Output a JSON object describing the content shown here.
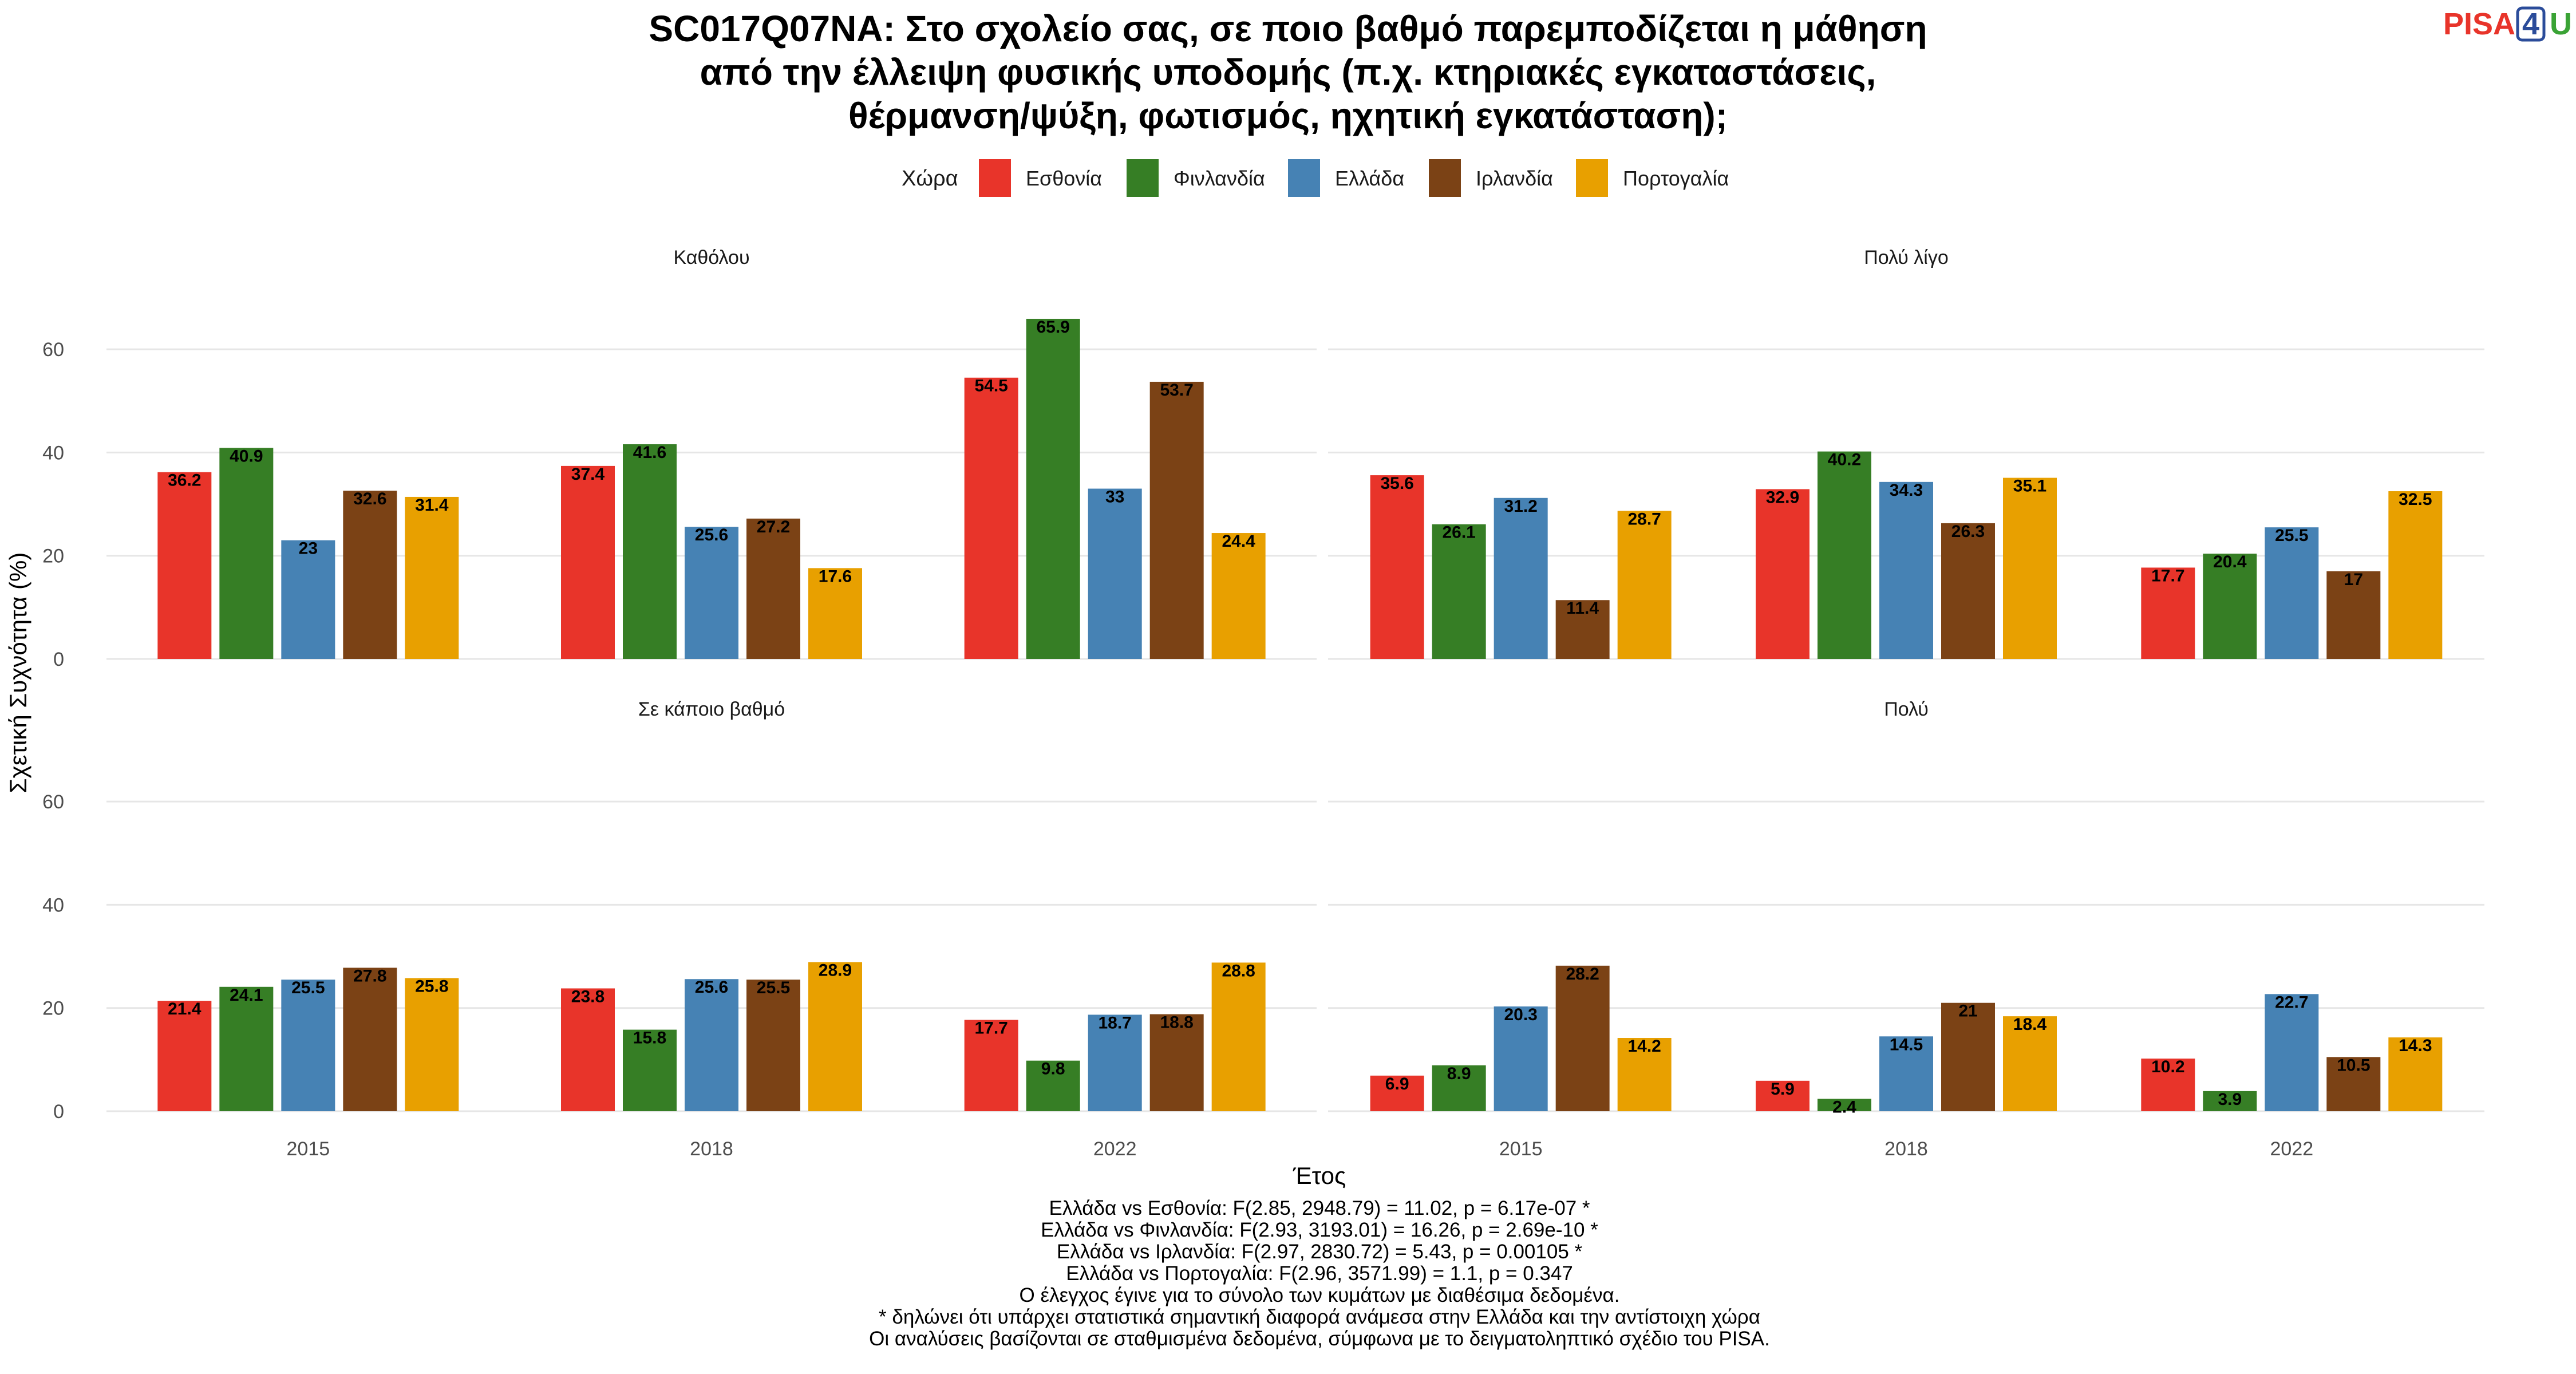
{
  "title_lines": [
    "SC017Q07NA: Στο σχολείο σας, σε ποιο βαθμό παρεμποδίζεται η μάθηση",
    "από την έλλειψη φυσικής υποδομής (π.χ. κτηριακές εγκαταστάσεις,",
    "θέρμανση/ψύξη, φωτισμός, ηχητική εγκατάσταση);"
  ],
  "logo": {
    "part1": "PISA",
    "part2": "4",
    "part3": "U"
  },
  "legend": {
    "title": "Χώρα",
    "items": [
      {
        "label": "Εσθονία",
        "color": "#E8342A"
      },
      {
        "label": "Φινλανδία",
        "color": "#367E25"
      },
      {
        "label": "Ελλάδα",
        "color": "#4682B4"
      },
      {
        "label": "Ιρλανδία",
        "color": "#7B4215"
      },
      {
        "label": "Πορτογαλία",
        "color": "#E8A000"
      }
    ]
  },
  "chart_data": {
    "type": "bar",
    "xlabel": "Έτος",
    "ylabel": "Σχετική Συχνότητα (%)",
    "ylim": [
      0,
      70
    ],
    "yticks": [
      0,
      20,
      40,
      60
    ],
    "categories": [
      "2015",
      "2018",
      "2022"
    ],
    "series_names": [
      "Εσθονία",
      "Φινλανδία",
      "Ελλάδα",
      "Ιρλανδία",
      "Πορτογαλία"
    ],
    "panels": [
      {
        "title": "Καθόλου",
        "values": [
          [
            36.2,
            40.9,
            23,
            32.6,
            31.4
          ],
          [
            37.4,
            41.6,
            25.6,
            27.2,
            17.6
          ],
          [
            54.5,
            65.9,
            33,
            53.7,
            24.4
          ]
        ]
      },
      {
        "title": "Πολύ λίγο",
        "values": [
          [
            35.6,
            26.1,
            31.2,
            11.4,
            28.7
          ],
          [
            32.9,
            40.2,
            34.3,
            26.3,
            35.1
          ],
          [
            17.7,
            20.4,
            25.5,
            17,
            32.5
          ]
        ]
      },
      {
        "title": "Σε κάποιο βαθμό",
        "values": [
          [
            21.4,
            24.1,
            25.5,
            27.8,
            25.8
          ],
          [
            23.8,
            15.8,
            25.6,
            25.5,
            28.9
          ],
          [
            17.7,
            9.8,
            18.7,
            18.8,
            28.8
          ]
        ]
      },
      {
        "title": "Πολύ",
        "values": [
          [
            6.9,
            8.9,
            20.3,
            28.2,
            14.2
          ],
          [
            5.9,
            2.4,
            14.5,
            21,
            18.4
          ],
          [
            10.2,
            3.9,
            22.7,
            10.5,
            14.3
          ]
        ]
      }
    ]
  },
  "notes": [
    "Ελλάδα vs Εσθονία: F(2.85, 2948.79) = 11.02, p = 6.17e-07 *",
    "Ελλάδα vs Φινλανδία: F(2.93, 3193.01) = 16.26, p = 2.69e-10 *",
    "Ελλάδα vs Ιρλανδία: F(2.97, 2830.72) = 5.43, p = 0.00105 *",
    "Ελλάδα vs Πορτογαλία: F(2.96, 3571.99) = 1.1, p = 0.347",
    "Ο έλεγχος έγινε για το σύνολο των κυμάτων με διαθέσιμα δεδομένα.",
    "* δηλώνει ότι υπάρχει στατιστικά σημαντική διαφορά ανάμεσα στην Ελλάδα και την αντίστοιχη χώρα",
    "Οι αναλύσεις βασίζονται σε σταθμισμένα δεδομένα, σύμφωνα με το δειγματοληπτικό σχέδιο του PISA."
  ]
}
